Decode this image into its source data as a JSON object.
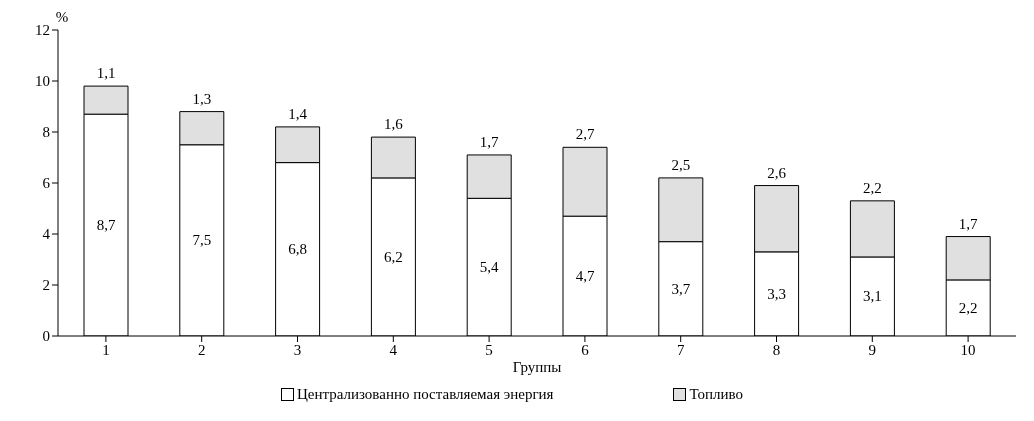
{
  "chart_data": {
    "type": "bar",
    "stacked": true,
    "xlabel": "Группы",
    "ylabel": "%",
    "categories": [
      "1",
      "2",
      "3",
      "4",
      "5",
      "6",
      "7",
      "8",
      "9",
      "10"
    ],
    "series": [
      {
        "name": "Централизованно поставляемая энергия",
        "color": "#ffffff",
        "values": [
          8.7,
          7.5,
          6.8,
          6.2,
          5.4,
          4.7,
          3.7,
          3.3,
          3.1,
          2.2
        ],
        "value_labels": [
          "8,7",
          "7,5",
          "6,8",
          "6,2",
          "5,4",
          "4,7",
          "3,7",
          "3,3",
          "3,1",
          "2,2"
        ]
      },
      {
        "name": "Топливо",
        "color": "#e0e0e0",
        "values": [
          1.1,
          1.3,
          1.4,
          1.6,
          1.7,
          2.7,
          2.5,
          2.6,
          2.2,
          1.7
        ],
        "value_labels": [
          "1,1",
          "1,3",
          "1,4",
          "1,6",
          "1,7",
          "2,7",
          "2,5",
          "2,6",
          "2,2",
          "1,7"
        ]
      }
    ],
    "ylim": [
      0,
      12
    ],
    "yticks": [
      0,
      2,
      4,
      6,
      8,
      10,
      12
    ],
    "grid": false,
    "legend": "bottom"
  }
}
